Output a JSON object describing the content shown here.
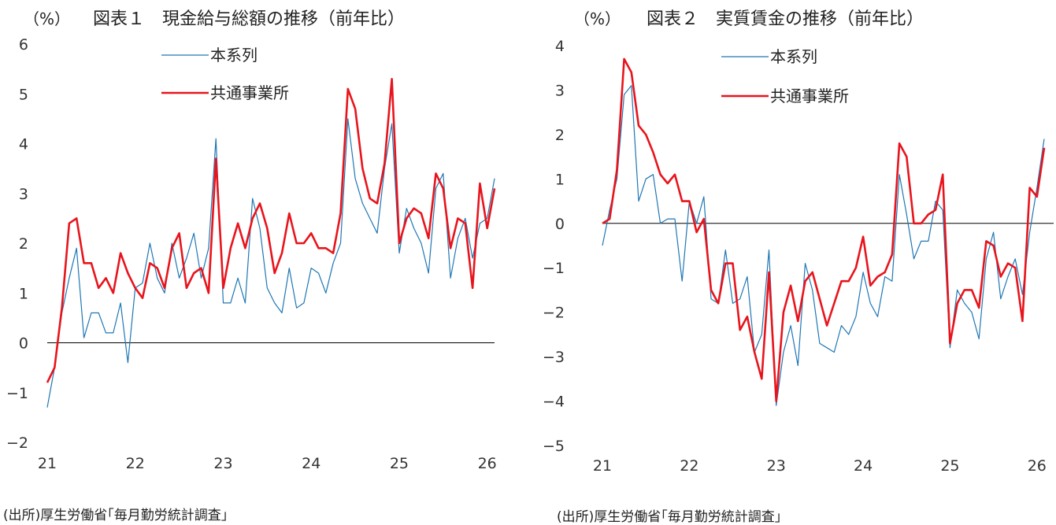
{
  "chart_data": [
    {
      "type": "line",
      "title": "図表１　現金給与総額の推移（前年比）",
      "unit_label": "（%）",
      "source": "(出所)厚生労働省｢毎月勤労統計調査｣",
      "x_tick_labels": [
        "21",
        "22",
        "23",
        "24",
        "25",
        "26"
      ],
      "x_tick_positions": [
        0,
        12,
        24,
        36,
        48,
        60
      ],
      "y_ticks": [
        -2,
        -1,
        0,
        1,
        2,
        3,
        4,
        5,
        6
      ],
      "ylim": [
        -2,
        6
      ],
      "xlim": [
        0,
        61
      ],
      "grid": false,
      "zero_line": true,
      "legend_position": "top-center",
      "series": [
        {
          "name": "本系列",
          "color": "#1f77b4",
          "values": [
            -1.3,
            -0.5,
            0.6,
            1.3,
            1.9,
            0.1,
            0.6,
            0.6,
            0.2,
            0.2,
            0.8,
            -0.4,
            1.1,
            1.2,
            2.0,
            1.3,
            1.0,
            2.0,
            1.3,
            1.7,
            2.2,
            1.3,
            1.9,
            4.1,
            0.8,
            0.8,
            1.3,
            0.8,
            2.9,
            2.3,
            1.1,
            0.8,
            0.6,
            1.5,
            0.7,
            0.8,
            1.5,
            1.4,
            1.0,
            1.6,
            2.0,
            4.5,
            3.3,
            2.8,
            2.5,
            2.2,
            3.5,
            4.4,
            1.8,
            2.7,
            2.3,
            2.0,
            1.4,
            3.1,
            3.4,
            1.3,
            2.1,
            2.5,
            1.7,
            2.4,
            2.5,
            3.3
          ]
        },
        {
          "name": "共通事業所",
          "color": "#e8141c",
          "values": [
            -0.8,
            -0.5,
            0.7,
            2.4,
            2.5,
            1.6,
            1.6,
            1.1,
            1.3,
            1.0,
            1.8,
            1.4,
            1.1,
            0.9,
            1.6,
            1.5,
            1.1,
            1.9,
            2.2,
            1.1,
            1.4,
            1.5,
            1.0,
            3.7,
            1.1,
            1.9,
            2.4,
            1.9,
            2.5,
            2.8,
            2.3,
            1.4,
            1.8,
            2.6,
            2.0,
            2.0,
            2.2,
            1.9,
            1.9,
            1.8,
            2.6,
            5.1,
            4.7,
            3.5,
            2.9,
            2.8,
            3.6,
            5.3,
            2.0,
            2.5,
            2.7,
            2.6,
            2.1,
            3.4,
            3.1,
            1.9,
            2.5,
            2.4,
            1.1,
            3.2,
            2.3,
            3.1
          ]
        }
      ]
    },
    {
      "type": "line",
      "title": "図表２　実質賃金の推移（前年比）",
      "unit_label": "（%）",
      "source": "(出所)厚生労働省｢毎月勤労統計調査｣",
      "x_tick_labels": [
        "21",
        "22",
        "23",
        "24",
        "25",
        "26"
      ],
      "x_tick_positions": [
        0,
        12,
        24,
        36,
        48,
        60
      ],
      "y_ticks": [
        -5,
        -4,
        -3,
        -2,
        -1,
        0,
        1,
        2,
        3,
        4
      ],
      "ylim": [
        -5,
        4
      ],
      "xlim": [
        0,
        61
      ],
      "grid": false,
      "zero_line": true,
      "legend_position": "top-center",
      "series": [
        {
          "name": "本系列",
          "color": "#1f77b4",
          "values": [
            -0.5,
            0.3,
            1.0,
            2.9,
            3.1,
            0.5,
            1.0,
            1.1,
            0.0,
            0.1,
            0.1,
            -1.3,
            0.5,
            0.0,
            0.6,
            -1.7,
            -1.8,
            -0.6,
            -1.8,
            -1.7,
            -1.2,
            -2.9,
            -2.5,
            -0.6,
            -4.1,
            -2.9,
            -2.3,
            -3.2,
            -0.9,
            -1.5,
            -2.7,
            -2.8,
            -2.9,
            -2.3,
            -2.5,
            -2.1,
            -1.1,
            -1.8,
            -2.1,
            -1.2,
            -1.3,
            1.1,
            0.2,
            -0.8,
            -0.4,
            -0.4,
            0.5,
            0.3,
            -2.8,
            -1.5,
            -1.8,
            -2.0,
            -2.6,
            -0.8,
            -0.2,
            -1.7,
            -1.2,
            -0.8,
            -1.6,
            -0.2,
            0.8,
            1.9
          ]
        },
        {
          "name": "共通事業所",
          "color": "#e8141c",
          "values": [
            0.0,
            0.1,
            1.2,
            3.7,
            3.4,
            2.2,
            2.0,
            1.6,
            1.1,
            0.9,
            1.1,
            0.5,
            0.5,
            -0.2,
            0.1,
            -1.5,
            -1.8,
            -0.9,
            -0.9,
            -2.4,
            -2.1,
            -2.9,
            -3.5,
            -1.1,
            -4.0,
            -2.0,
            -1.4,
            -2.2,
            -1.3,
            -1.1,
            -1.7,
            -2.3,
            -1.8,
            -1.3,
            -1.3,
            -1.0,
            -0.3,
            -1.4,
            -1.2,
            -1.1,
            -0.7,
            1.8,
            1.5,
            0.0,
            0.0,
            0.2,
            0.3,
            1.1,
            -2.7,
            -1.8,
            -1.5,
            -1.5,
            -1.9,
            -0.4,
            -0.5,
            -1.2,
            -0.9,
            -1.0,
            -2.2,
            0.8,
            0.6,
            1.7
          ]
        }
      ]
    }
  ]
}
